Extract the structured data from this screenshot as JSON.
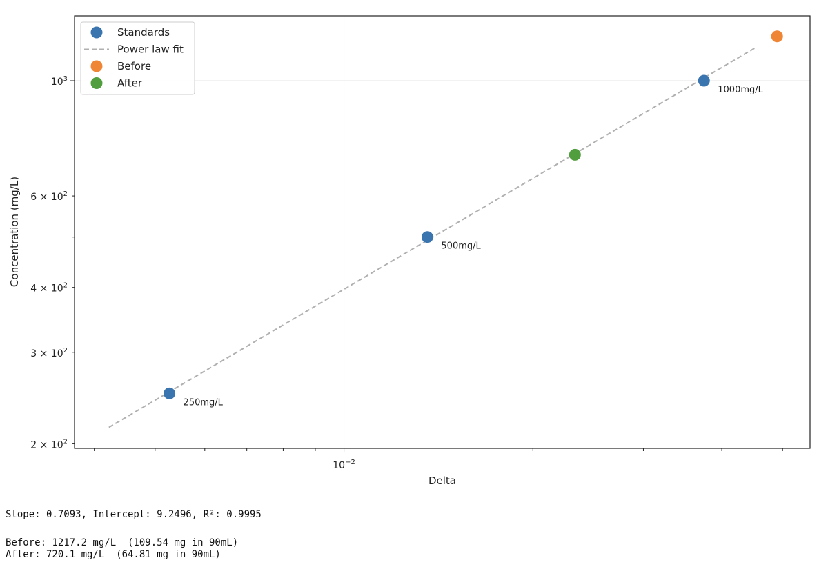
{
  "chart_data": {
    "type": "scatter",
    "xscale": "log",
    "yscale": "log",
    "xlabel": "Delta",
    "ylabel": "Concentration (mg/L)",
    "xlim": [
      0.00372,
      0.0553
    ],
    "ylim": [
      196,
      1333
    ],
    "x_major_ticks": [
      {
        "value": 0.01,
        "label_base": "10",
        "label_exp": "−2"
      }
    ],
    "x_minor_ticks": [
      0.004,
      0.005,
      0.006,
      0.007,
      0.008,
      0.009,
      0.02,
      0.03,
      0.04,
      0.05
    ],
    "y_major_ticks": [
      {
        "value": 1000,
        "label_base": "10",
        "label_exp": "3"
      }
    ],
    "y_minor_ticks": [
      {
        "value": 200,
        "label_base": "2 × 10",
        "label_exp": "2"
      },
      {
        "value": 300,
        "label_base": "3 × 10",
        "label_exp": "2"
      },
      {
        "value": 400,
        "label_base": "4 × 10",
        "label_exp": "2"
      },
      {
        "value": 500,
        "label_base": "",
        "label_exp": ""
      },
      {
        "value": 600,
        "label_base": "6 × 10",
        "label_exp": "2"
      }
    ],
    "grid": "major only",
    "legend_position": "top-left",
    "series": [
      {
        "name": "Standards",
        "kind": "points",
        "color": "#3a75af",
        "points": [
          {
            "x": 0.00527,
            "y": 250,
            "label": "250mg/L"
          },
          {
            "x": 0.01358,
            "y": 500,
            "label": "500mg/L"
          },
          {
            "x": 0.03747,
            "y": 1000,
            "label": "1000mg/L"
          }
        ]
      },
      {
        "name": "Power law fit",
        "kind": "dashed-line",
        "color": "#b0b0b0",
        "slope": 0.7093,
        "intercept": 9.2496,
        "x_range": [
          0.00422,
          0.0451
        ]
      },
      {
        "name": "Before",
        "kind": "points",
        "color": "#ef8636",
        "points": [
          {
            "x": 0.049,
            "y": 1217.2
          }
        ]
      },
      {
        "name": "After",
        "kind": "points",
        "color": "#519e3e",
        "points": [
          {
            "x": 0.02334,
            "y": 720.1
          }
        ]
      }
    ]
  },
  "output": {
    "fit_line": "Slope: 0.7093, Intercept: 9.2496, R²: 0.9995",
    "before_line": "Before: 1217.2 mg/L  (109.54 mg in 90mL)",
    "after_line": "After: 720.1 mg/L  (64.81 mg in 90mL)"
  }
}
